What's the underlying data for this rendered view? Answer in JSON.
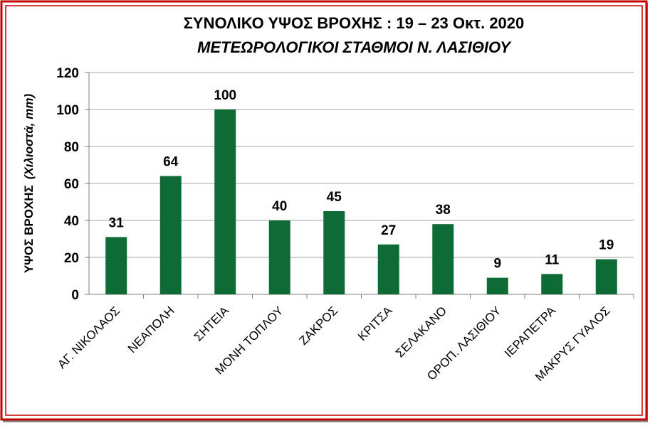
{
  "chart_data": {
    "type": "bar",
    "title": "ΣΥΝΟΛΙΚΟ ΥΨΟΣ ΒΡΟΧΗΣ  :  19 – 23 Οκτ. 2020",
    "subtitle": "ΜΕΤΕΩΡΟΛΟΓΙΚΟΙ ΣΤΑΘΜΟΙ  Ν. ΛΑΣΙΘΙΟΥ",
    "ylabel": "ΥΨΟΣ ΒΡΟΧΗΣ",
    "ylabel_unit": "(Χιλιοστά, mm)",
    "categories": [
      "ΑΓ. ΝΙΚΟΛΑΟΣ",
      "ΝΕΑΠΟΛΗ",
      "ΣΗΤΕΙΑ",
      "ΜΟΝΗ ΤΟΠΛΟΥ",
      "ΖΑΚΡΟΣ",
      "ΚΡΙΤΣΑ",
      "ΣΕΛΑΚΑΝΟ",
      "ΟΡΟΠ. ΛΑΣΙΘΙΟΥ",
      "ΙΕΡΑΠΕΤΡΑ",
      "ΜΑΚΡΥΣ ΓΥΑΛΟΣ"
    ],
    "values": [
      31,
      64,
      100,
      40,
      45,
      27,
      38,
      9,
      11,
      19
    ],
    "color": "#0f6b35",
    "ylim": [
      0,
      120
    ],
    "yticks": [
      0,
      20,
      40,
      60,
      80,
      100,
      120
    ],
    "grid": true
  }
}
